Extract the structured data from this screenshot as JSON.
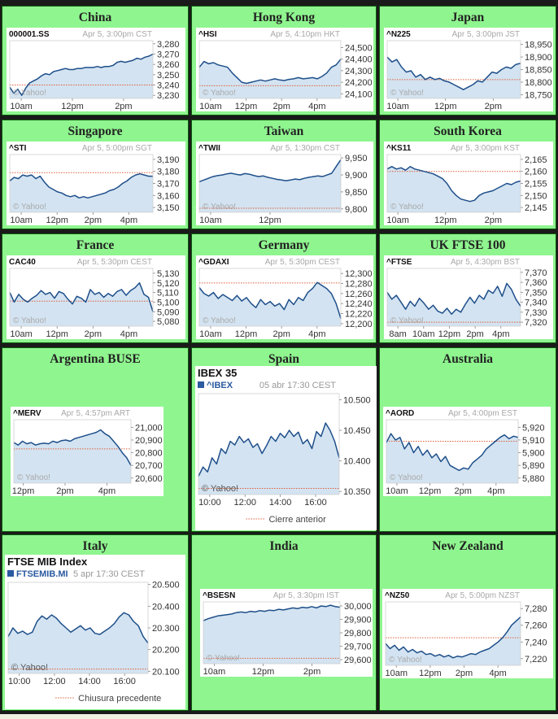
{
  "regions": [
    {
      "name": "China",
      "chart_data": {
        "type": "area",
        "style": "yahoo",
        "symbol": "000001.SS",
        "date": "Apr 5, 3:00pm CST",
        "x_ticks": [
          "10am",
          "12pm",
          "2pm"
        ],
        "y_ticks": [
          "3,280",
          "3,270",
          "3,260",
          "3,250",
          "3,240",
          "3,230"
        ],
        "ylim": [
          3227,
          3283
        ],
        "previous_close": 3240,
        "watermark": "© Yahoo!",
        "values": [
          3238,
          3232,
          3236,
          3230,
          3237,
          3242,
          3244,
          3246,
          3249,
          3251,
          3250,
          3253,
          3254,
          3255,
          3256,
          3255,
          3255,
          3256,
          3256,
          3257,
          3257,
          3257,
          3258,
          3257,
          3258,
          3258,
          3259,
          3262,
          3263,
          3262,
          3263,
          3264,
          3266,
          3265,
          3267,
          3268,
          3270
        ]
      }
    },
    {
      "name": "Hong Kong",
      "chart_data": {
        "type": "area",
        "style": "yahoo",
        "symbol": "^HSI",
        "date": "Apr 5, 4:10pm HKT",
        "x_ticks": [
          "10am",
          "12pm",
          "2pm",
          "4pm"
        ],
        "y_ticks": [
          "24,500",
          "24,400",
          "24,300",
          "24,200",
          "24,100"
        ],
        "ylim": [
          24060,
          24560
        ],
        "previous_close": 24170,
        "watermark": "© Yahoo!",
        "values": [
          24330,
          24380,
          24360,
          24370,
          24350,
          24340,
          24330,
          24280,
          24240,
          24200,
          24190,
          24200,
          24210,
          24220,
          24210,
          24220,
          24230,
          24220,
          24215,
          24225,
          24230,
          24240,
          24230,
          24235,
          24240,
          24230,
          24250,
          24280,
          24330,
          24350,
          24400
        ]
      }
    },
    {
      "name": "Japan",
      "chart_data": {
        "type": "area",
        "style": "yahoo",
        "symbol": "^N225",
        "date": "Apr 5, 3:00pm JST",
        "x_ticks": [
          "10am",
          "12pm",
          "2pm"
        ],
        "y_ticks": [
          "18,950",
          "18,900",
          "18,850",
          "18,800",
          "18,750"
        ],
        "ylim": [
          18735,
          18965
        ],
        "previous_close": 18810,
        "watermark": "© Yahoo!",
        "values": [
          18900,
          18880,
          18890,
          18860,
          18840,
          18845,
          18820,
          18830,
          18810,
          18820,
          18810,
          18815,
          18805,
          18800,
          18790,
          18780,
          18770,
          18780,
          18790,
          18805,
          18800,
          18820,
          18840,
          18835,
          18850,
          18860,
          18855,
          18870,
          18875
        ]
      }
    },
    {
      "name": "Singapore",
      "chart_data": {
        "type": "area",
        "style": "yahoo",
        "symbol": "^STI",
        "date": "Apr 5, 5:00pm SGT",
        "x_ticks": [
          "10am",
          "12pm",
          "2pm",
          "4pm"
        ],
        "y_ticks": [
          "3,190",
          "3,180",
          "3,170",
          "3,160",
          "3,150"
        ],
        "ylim": [
          3146,
          3194
        ],
        "previous_close": 3179,
        "watermark": "© Yahoo!",
        "values": [
          3172,
          3175,
          3174,
          3177,
          3176,
          3177,
          3174,
          3176,
          3171,
          3167,
          3165,
          3163,
          3162,
          3160,
          3159,
          3160,
          3158,
          3159,
          3158,
          3159,
          3160,
          3161,
          3162,
          3164,
          3165,
          3167,
          3170,
          3172,
          3175,
          3177,
          3178,
          3177,
          3176,
          3176
        ]
      }
    },
    {
      "name": "Taiwan",
      "chart_data": {
        "type": "area",
        "style": "yahoo",
        "symbol": "^TWII",
        "date": "Apr 5, 1:30pm CST",
        "x_ticks": [
          "10am",
          "12pm"
        ],
        "y_ticks": [
          "9,950",
          "9,900",
          "9,850",
          "9,800"
        ],
        "ylim": [
          9790,
          9960
        ],
        "previous_close": 9802,
        "watermark": "© Yahoo!",
        "values": [
          9880,
          9885,
          9890,
          9895,
          9898,
          9900,
          9903,
          9905,
          9902,
          9900,
          9904,
          9902,
          9898,
          9895,
          9897,
          9893,
          9890,
          9887,
          9885,
          9883,
          9885,
          9888,
          9886,
          9890,
          9893,
          9895,
          9897,
          9895,
          9900,
          9905,
          9925,
          9945
        ]
      }
    },
    {
      "name": "South Korea",
      "chart_data": {
        "type": "area",
        "style": "yahoo",
        "symbol": "^KS11",
        "date": "Apr 5, 3:00pm KST",
        "x_ticks": [
          "10am",
          "12pm",
          "2pm"
        ],
        "y_ticks": [
          "2,165",
          "2,160",
          "2,155",
          "2,150",
          "2,145"
        ],
        "ylim": [
          2143,
          2167
        ],
        "previous_close": 2160,
        "watermark": "© Yahoo!",
        "values": [
          2161,
          2162,
          2161,
          2161.5,
          2160.5,
          2162,
          2161,
          2160.5,
          2160,
          2159.5,
          2159,
          2158,
          2157,
          2155,
          2152,
          2150,
          2148.5,
          2148,
          2147.5,
          2148,
          2150,
          2151,
          2151.5,
          2152,
          2153,
          2154,
          2155,
          2154.5,
          2155.5,
          2156
        ]
      }
    },
    {
      "name": "France",
      "chart_data": {
        "type": "area",
        "style": "yahoo",
        "symbol": "CAC40",
        "date": "Apr 5, 5:30pm CEST",
        "x_ticks": [
          "10am",
          "12pm",
          "2pm",
          "4pm"
        ],
        "y_ticks": [
          "5,130",
          "5,120",
          "5,110",
          "5,100",
          "5,090",
          "5,080"
        ],
        "ylim": [
          5075,
          5135
        ],
        "previous_close": 5101,
        "watermark": "© Yahoo!",
        "values": [
          5110,
          5100,
          5108,
          5103,
          5100,
          5104,
          5107,
          5112,
          5108,
          5110,
          5104,
          5111,
          5109,
          5103,
          5098,
          5106,
          5104,
          5100,
          5113,
          5108,
          5110,
          5105,
          5109,
          5106,
          5111,
          5113,
          5107,
          5112,
          5115,
          5120,
          5108,
          5105,
          5090
        ]
      }
    },
    {
      "name": "Germany",
      "chart_data": {
        "type": "area",
        "style": "yahoo",
        "symbol": "^GDAXI",
        "date": "Apr 5, 5:30pm CEST",
        "x_ticks": [
          "10am",
          "12pm",
          "2pm",
          "4pm"
        ],
        "y_ticks": [
          "12,300",
          "12,280",
          "12,260",
          "12,240",
          "12,220",
          "12,200"
        ],
        "ylim": [
          12195,
          12310
        ],
        "previous_close": 12281,
        "watermark": "© Yahoo!",
        "values": [
          12272,
          12260,
          12255,
          12262,
          12250,
          12258,
          12252,
          12246,
          12256,
          12245,
          12252,
          12240,
          12232,
          12248,
          12238,
          12244,
          12235,
          12240,
          12228,
          12248,
          12238,
          12252,
          12246,
          12262,
          12270,
          12282,
          12276,
          12270,
          12260,
          12240,
          12210
        ]
      }
    },
    {
      "name": "UK FTSE 100",
      "chart_data": {
        "type": "area",
        "style": "yahoo",
        "symbol": "^FTSE",
        "date": "Apr 5, 4:30pm BST",
        "x_ticks": [
          "8am",
          "10am",
          "12pm",
          "2pm",
          "4pm"
        ],
        "y_ticks": [
          "7,370",
          "7,360",
          "7,350",
          "7,340",
          "7,330",
          "7,320"
        ],
        "ylim": [
          7316,
          7374
        ],
        "previous_close": 7320,
        "watermark": "© Yahoo!",
        "values": [
          7350,
          7343,
          7347,
          7340,
          7333,
          7341,
          7336,
          7344,
          7339,
          7333,
          7337,
          7331,
          7329,
          7334,
          7328,
          7333,
          7330,
          7338,
          7345,
          7339,
          7347,
          7343,
          7352,
          7349,
          7356,
          7346,
          7359,
          7353,
          7343,
          7336
        ]
      }
    },
    {
      "name": "Argentina BUSE",
      "chart_data": {
        "type": "area",
        "style": "yahoo",
        "symbol": "^MERV",
        "date": "Apr 5, 4:57pm ART",
        "x_ticks": [
          "12pm",
          "2pm",
          "4pm"
        ],
        "y_ticks": [
          "21,000",
          "20,900",
          "20,800",
          "20,700",
          "20,600"
        ],
        "ylim": [
          20560,
          21060
        ],
        "previous_close": 20830,
        "watermark": "© Yahoo!",
        "values": [
          20880,
          20860,
          20890,
          20870,
          20880,
          20860,
          20870,
          20875,
          20870,
          20890,
          20880,
          20895,
          20900,
          20890,
          20910,
          20920,
          20930,
          20940,
          20950,
          20960,
          20980,
          20950,
          20930,
          20890,
          20850,
          20800,
          20760,
          20700
        ]
      }
    },
    {
      "name": "Spain",
      "chart_data": {
        "type": "area",
        "style": "yahoo-es",
        "title": "IBEX 35",
        "symbol": "^IBEX",
        "date": "05 abr 17:30 CEST",
        "x_ticks": [
          "10:00",
          "12:00",
          "14:00",
          "16:00"
        ],
        "y_ticks": [
          "10.500",
          "10.450",
          "10.400",
          "10.350"
        ],
        "ylim": [
          10345,
          10510
        ],
        "previous_close": 10355,
        "watermark": "© Yahoo!",
        "legend": "Cierre anterior",
        "values": [
          10375,
          10390,
          10382,
          10405,
          10395,
          10420,
          10412,
          10432,
          10426,
          10440,
          10430,
          10436,
          10422,
          10428,
          10412,
          10425,
          10440,
          10432,
          10445,
          10438,
          10450,
          10440,
          10447,
          10428,
          10435,
          10420,
          10448,
          10440,
          10462,
          10450,
          10432,
          10405
        ]
      }
    },
    {
      "name": "Australia",
      "chart_data": {
        "type": "area",
        "style": "yahoo",
        "symbol": "^AORD",
        "date": "Apr 5, 4:00pm EST",
        "x_ticks": [
          "10am",
          "12pm",
          "2pm",
          "4pm"
        ],
        "y_ticks": [
          "5,920",
          "5,910",
          "5,900",
          "5,890",
          "5,880"
        ],
        "ylim": [
          5876,
          5926
        ],
        "previous_close": 5909,
        "watermark": "© Yahoo!",
        "values": [
          5908,
          5915,
          5910,
          5912,
          5903,
          5908,
          5900,
          5905,
          5898,
          5902,
          5896,
          5899,
          5893,
          5897,
          5890,
          5888,
          5886,
          5888,
          5887,
          5892,
          5895,
          5898,
          5903,
          5906,
          5909,
          5912,
          5914,
          5911,
          5913,
          5912
        ]
      }
    },
    {
      "name": "Italy",
      "chart_data": {
        "type": "area",
        "style": "yahoo-it",
        "title": "FTSE MIB Index",
        "symbol": "FTSEMIB.MI",
        "date": "5 apr 17:30 CEST",
        "x_ticks": [
          "10:00",
          "12:00",
          "14:00",
          "16:00"
        ],
        "y_ticks": [
          "20.500",
          "20.400",
          "20.300",
          "20.200",
          "20.100"
        ],
        "ylim": [
          20090,
          20510
        ],
        "previous_close": 20110,
        "watermark": "© Yahoo!",
        "legend": "Chiusura precedente",
        "values": [
          20260,
          20300,
          20275,
          20285,
          20270,
          20280,
          20330,
          20355,
          20340,
          20360,
          20345,
          20320,
          20300,
          20280,
          20295,
          20310,
          20290,
          20300,
          20275,
          20270,
          20285,
          20300,
          20320,
          20350,
          20370,
          20360,
          20330,
          20310,
          20260,
          20230
        ]
      }
    },
    {
      "name": "India",
      "chart_data": {
        "type": "area",
        "style": "yahoo",
        "symbol": "^BSESN",
        "date": "Apr 5, 3:30pm IST",
        "x_ticks": [
          "10am",
          "12pm",
          "2pm"
        ],
        "y_ticks": [
          "30,000",
          "29,900",
          "29,800",
          "29,700",
          "29,600"
        ],
        "ylim": [
          29570,
          30030
        ],
        "previous_close": 29610,
        "watermark": "© Yahoo!",
        "values": [
          29890,
          29905,
          29915,
          29925,
          29930,
          29935,
          29940,
          29950,
          29955,
          29950,
          29960,
          29955,
          29965,
          29960,
          29968,
          29965,
          29975,
          29970,
          29978,
          29985,
          29980,
          29990,
          29985,
          29995,
          29985,
          30000,
          29995,
          30005,
          29995,
          29990
        ]
      }
    },
    {
      "name": "New Zealand",
      "chart_data": {
        "type": "area",
        "style": "yahoo",
        "symbol": "^NZ50",
        "date": "Apr 5, 5:00pm NZST",
        "x_ticks": [
          "10am",
          "12pm",
          "2pm",
          "4pm"
        ],
        "y_ticks": [
          "7,280",
          "7,260",
          "7,240",
          "7,220"
        ],
        "ylim": [
          7212,
          7288
        ],
        "previous_close": 7245,
        "watermark": "© Yahoo!",
        "values": [
          7238,
          7232,
          7236,
          7230,
          7234,
          7228,
          7231,
          7227,
          7229,
          7225,
          7226,
          7223,
          7225,
          7222,
          7224,
          7221,
          7223,
          7222,
          7224,
          7226,
          7225,
          7228,
          7230,
          7232,
          7236,
          7240,
          7245,
          7252,
          7260,
          7265,
          7270
        ]
      }
    }
  ]
}
